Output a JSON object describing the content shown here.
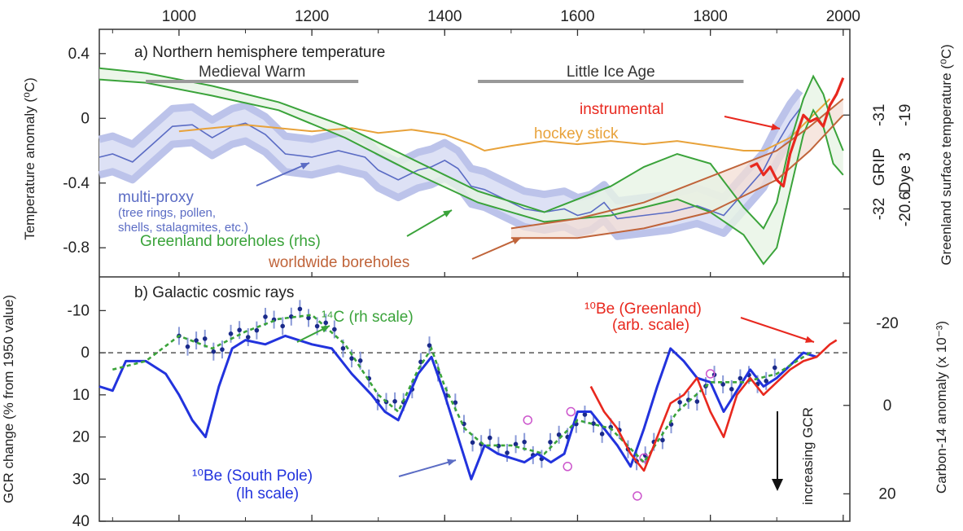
{
  "chart_data": [
    {
      "type": "line",
      "title": "a) Northern hemisphere temperature",
      "ylabel": "Temperature anomaly (⁰C)",
      "ylabel_right": "Greenland surface temperature (⁰C)",
      "xlim": [
        880,
        2010
      ],
      "ylim": [
        -0.98,
        0.55
      ],
      "x_ticks": [
        "1000",
        "1200",
        "1400",
        "1600",
        "1800",
        "2000"
      ],
      "y_ticks": [
        {
          "v": 0.4,
          "label": "0.4"
        },
        {
          "v": 0,
          "label": "0"
        },
        {
          "v": -0.4,
          "label": "-0.4"
        },
        {
          "v": -0.8,
          "label": "-0.8"
        }
      ],
      "right_ticks": [
        {
          "v": 0.02,
          "grip": "-31",
          "dye3": "-19"
        },
        {
          "v": -0.56,
          "grip": "-32",
          "dye3": "-20.6"
        }
      ],
      "right_scale_labels": [
        "GRIP",
        "Dye 3"
      ],
      "periods": [
        {
          "name": "Medieval Warm",
          "start": 950,
          "end": 1270
        },
        {
          "name": "Little Ice Age",
          "start": 1450,
          "end": 1850
        }
      ],
      "series": [
        {
          "name": "multi-proxy",
          "detail": "(tree rings, pollen, shells, stalagmites, etc.)",
          "color": "#5b6cc4",
          "x": [
            880,
            900,
            930,
            960,
            990,
            1020,
            1050,
            1080,
            1100,
            1130,
            1160,
            1200,
            1240,
            1280,
            1300,
            1330,
            1360,
            1380,
            1400,
            1420,
            1440,
            1460,
            1490,
            1520,
            1550,
            1580,
            1600,
            1620,
            1640,
            1660,
            1700,
            1740,
            1780,
            1820,
            1850,
            1880,
            1900,
            1920,
            1935
          ],
          "y": [
            -0.24,
            -0.22,
            -0.27,
            -0.16,
            -0.05,
            -0.04,
            -0.12,
            -0.05,
            -0.03,
            -0.1,
            -0.22,
            -0.24,
            -0.2,
            -0.24,
            -0.32,
            -0.38,
            -0.32,
            -0.3,
            -0.26,
            -0.31,
            -0.42,
            -0.44,
            -0.5,
            -0.56,
            -0.58,
            -0.56,
            -0.6,
            -0.58,
            -0.52,
            -0.62,
            -0.6,
            -0.58,
            -0.54,
            -0.6,
            -0.46,
            -0.32,
            -0.16,
            -0.02,
            0.06
          ],
          "band": 0.11
        },
        {
          "name": "hockey stick",
          "color": "#e8a23a",
          "x": [
            1000,
            1050,
            1100,
            1150,
            1200,
            1260,
            1300,
            1350,
            1400,
            1440,
            1460,
            1500,
            1550,
            1600,
            1650,
            1700,
            1750,
            1800,
            1850,
            1880,
            1900,
            1920,
            1940,
            1960,
            1980
          ],
          "y": [
            -0.08,
            -0.06,
            -0.04,
            -0.06,
            -0.08,
            -0.06,
            -0.09,
            -0.07,
            -0.1,
            -0.16,
            -0.2,
            -0.17,
            -0.14,
            -0.16,
            -0.14,
            -0.16,
            -0.14,
            -0.17,
            -0.2,
            -0.2,
            -0.16,
            -0.12,
            -0.04,
            0.04,
            0.12
          ]
        },
        {
          "name": "Greenland boreholes (rhs)",
          "color": "#3aa33a",
          "x": [
            880,
            950,
            1050,
            1150,
            1250,
            1350,
            1450,
            1550,
            1650,
            1700,
            1750,
            1800,
            1850,
            1880,
            1900,
            1920,
            1940,
            1955,
            1970,
            1985,
            2000
          ],
          "y_upper": [
            0.31,
            0.28,
            0.2,
            0.1,
            -0.05,
            -0.25,
            -0.45,
            -0.58,
            -0.42,
            -0.3,
            -0.22,
            -0.28,
            -0.55,
            -0.68,
            -0.52,
            -0.15,
            0.12,
            0.26,
            0.15,
            -0.05,
            -0.2
          ],
          "y_lower": [
            0.24,
            0.22,
            0.14,
            0.05,
            -0.12,
            -0.33,
            -0.52,
            -0.64,
            -0.6,
            -0.55,
            -0.5,
            -0.58,
            -0.72,
            -0.9,
            -0.8,
            -0.45,
            -0.1,
            0.05,
            -0.05,
            -0.28,
            -0.35
          ]
        },
        {
          "name": "worldwide boreholes",
          "color": "#c0643a",
          "x": [
            1500,
            1600,
            1700,
            1800,
            1900,
            1950,
            2000
          ],
          "y_upper": [
            -0.68,
            -0.62,
            -0.52,
            -0.36,
            -0.2,
            -0.05,
            0.12
          ],
          "y_lower": [
            -0.74,
            -0.74,
            -0.68,
            -0.58,
            -0.38,
            -0.2,
            0.02
          ]
        },
        {
          "name": "instrumental",
          "color": "#e8281e",
          "x": [
            1860,
            1870,
            1880,
            1890,
            1900,
            1910,
            1920,
            1930,
            1940,
            1950,
            1960,
            1970,
            1980,
            1990,
            2000
          ],
          "y": [
            -0.3,
            -0.28,
            -0.35,
            -0.3,
            -0.38,
            -0.42,
            -0.22,
            -0.1,
            0.02,
            -0.02,
            0.0,
            -0.05,
            0.08,
            0.15,
            0.25
          ]
        }
      ],
      "labels": {
        "multi_proxy": "multi-proxy",
        "multi_proxy_detail1": "(tree rings, pollen,",
        "multi_proxy_detail2": "shells, stalagmites, etc.)",
        "greenland": "Greenland boreholes (rhs)",
        "worldwide": "worldwide boreholes",
        "instrumental": "instrumental",
        "hockey": "hockey stick"
      }
    },
    {
      "type": "line",
      "title": "b) Galactic cosmic rays",
      "ylabel": "GCR change (% from 1950 value)",
      "ylabel_right": "Carbon-14 anomaly (x 10⁻³)",
      "xlim": [
        880,
        2010
      ],
      "ylim_reversed": [
        -18,
        40
      ],
      "y_ticks": [
        {
          "v": -10,
          "label": "-10"
        },
        {
          "v": 0,
          "label": "0"
        },
        {
          "v": 10,
          "label": "10"
        },
        {
          "v": 20,
          "label": "20"
        },
        {
          "v": 30,
          "label": "30"
        },
        {
          "v": 40,
          "label": "40"
        }
      ],
      "right_ticks": [
        {
          "v": -7,
          "label": "-20"
        },
        {
          "v": 12.5,
          "label": "0"
        },
        {
          "v": 33.5,
          "label": "20"
        }
      ],
      "annotation": "increasing GCR",
      "series": [
        {
          "name": "¹⁰Be (South Pole) (lh scale)",
          "color": "#2233dd",
          "x": [
            880,
            900,
            920,
            950,
            980,
            1000,
            1020,
            1040,
            1060,
            1080,
            1100,
            1130,
            1160,
            1200,
            1230,
            1260,
            1290,
            1310,
            1330,
            1360,
            1380,
            1400,
            1420,
            1440,
            1460,
            1480,
            1500,
            1520,
            1540,
            1560,
            1580,
            1600,
            1620,
            1640,
            1660,
            1680,
            1700,
            1720,
            1740,
            1760,
            1780,
            1800,
            1820,
            1840,
            1860,
            1880,
            1900,
            1920,
            1940,
            1960
          ],
          "y": [
            8,
            9,
            2,
            2,
            5,
            10,
            16,
            20,
            8,
            -1,
            -3,
            -2,
            -4,
            -2,
            -1,
            5,
            10,
            14,
            16,
            5,
            1,
            10,
            20,
            30,
            22,
            24,
            25,
            26,
            24,
            26,
            24,
            14,
            14,
            18,
            22,
            27,
            18,
            8,
            -1,
            2,
            6,
            7,
            14,
            9,
            4,
            8,
            6,
            3,
            0,
            1
          ]
        },
        {
          "name": "¹⁴C (rh scale)",
          "color": "#3aa33a",
          "x": [
            900,
            950,
            1000,
            1050,
            1100,
            1150,
            1200,
            1250,
            1300,
            1330,
            1360,
            1380,
            1400,
            1430,
            1460,
            1500,
            1550,
            1600,
            1650,
            1700,
            1750,
            1800,
            1850,
            1900,
            1950
          ],
          "y": [
            4,
            2,
            -4,
            -1,
            -5,
            -8,
            -9,
            -2,
            10,
            14,
            4,
            -1,
            8,
            18,
            22,
            22,
            24,
            16,
            18,
            26,
            14,
            7,
            7,
            5,
            0
          ]
        },
        {
          "name": "¹⁰Be (Greenland) (arb. scale)",
          "color": "#e8281e",
          "x": [
            1620,
            1640,
            1660,
            1680,
            1700,
            1720,
            1740,
            1760,
            1780,
            1800,
            1820,
            1840,
            1860,
            1880,
            1900,
            1920,
            1940,
            1960,
            1980,
            1990
          ],
          "y": [
            8,
            14,
            18,
            24,
            28,
            20,
            12,
            10,
            6,
            14,
            20,
            10,
            6,
            10,
            7,
            4,
            2,
            1,
            -2,
            -3
          ]
        }
      ],
      "labels": {
        "south_pole": "¹⁰Be (South Pole)",
        "south_pole_scale": "(lh scale)",
        "c14": "¹⁴C (rh scale)",
        "greenland_be": "¹⁰Be (Greenland)",
        "greenland_be_scale": "(arb. scale)",
        "increasing": "increasing GCR"
      }
    }
  ],
  "colors": {
    "band": "#bcc3ea",
    "band_light": "#dde1f5",
    "green_fill": "#e7f4e5",
    "brown_fill": "#f3ded4",
    "arrow_multi": "#5b6cc4",
    "arrow_green": "#3aa33a",
    "arrow_brown": "#c0643a",
    "arrow_red": "#e8281e",
    "dots": "#1a2a8a",
    "err": "#8a9ad8",
    "circles": "#cc55cc",
    "period_bar": "#999999"
  }
}
